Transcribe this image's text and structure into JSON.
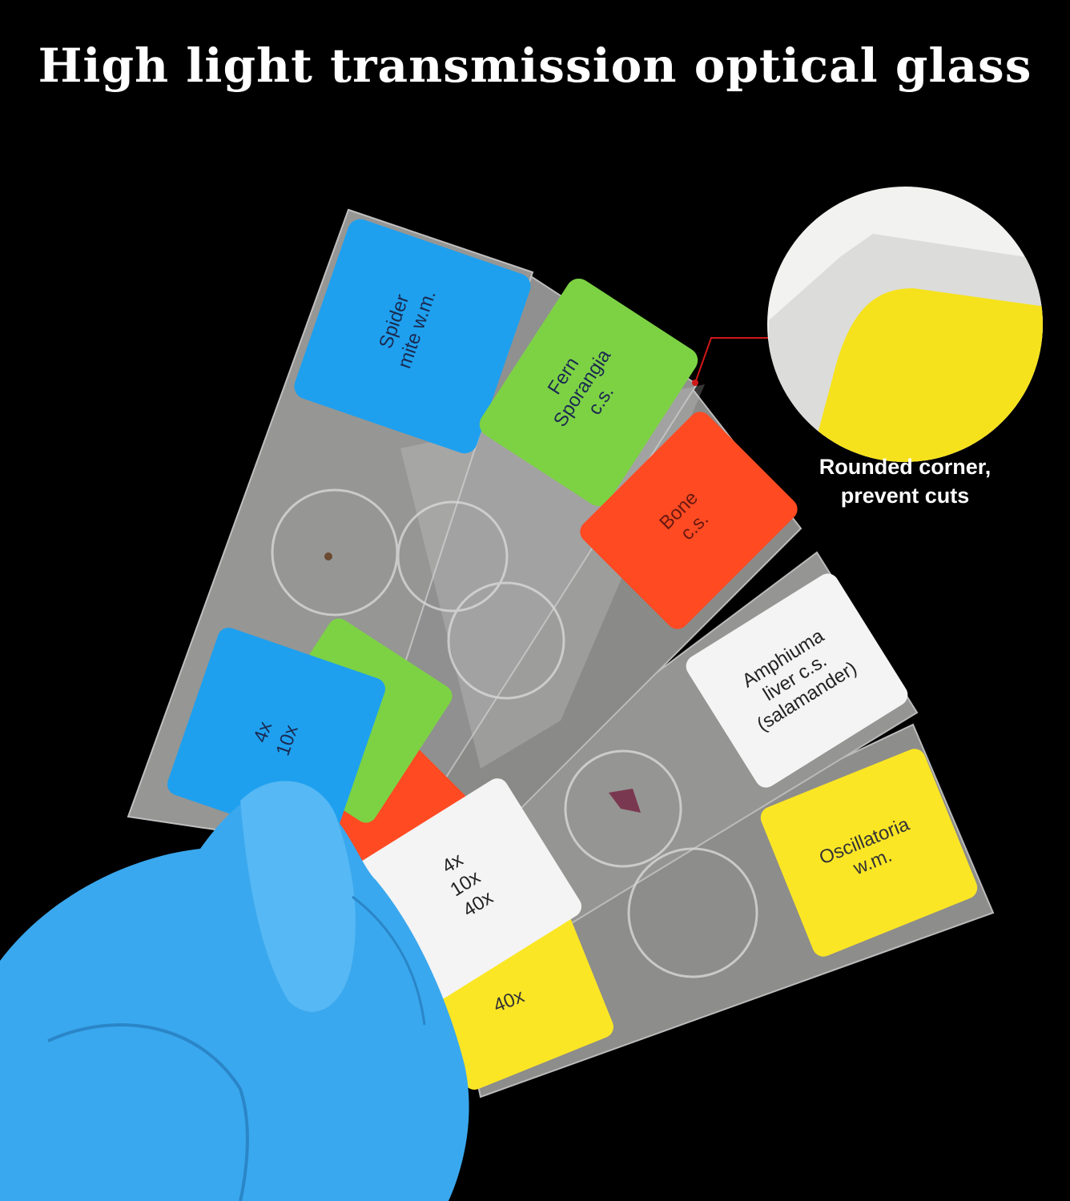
{
  "title": "High light transmission optical glass",
  "callout": {
    "line1": "Rounded corner,",
    "line2": "prevent cuts"
  },
  "slides": [
    {
      "label": [
        "Spider",
        "mite w.m."
      ],
      "color": "#1ea0ef"
    },
    {
      "label": [
        "Fern",
        "Sporangia",
        "c.s."
      ],
      "color": "#7dd244"
    },
    {
      "label": [
        "Bone",
        "c.s."
      ],
      "color": "#ff4a22"
    },
    {
      "label": [
        "Amphiuma",
        "liver c.s.",
        "(salamander)"
      ],
      "color": "#f4f4f4"
    },
    {
      "label": [
        "Oscillatoria",
        "w.m."
      ],
      "color": "#fbe625"
    }
  ],
  "magnification_labels": {
    "blue": [
      "4x",
      "10x"
    ],
    "white": [
      "4x",
      "10x",
      "40x"
    ],
    "yellow": [
      "40x"
    ]
  },
  "colors": {
    "glove": "#3aa8ee",
    "glass": "#8e8e8c",
    "background": "#000000"
  }
}
